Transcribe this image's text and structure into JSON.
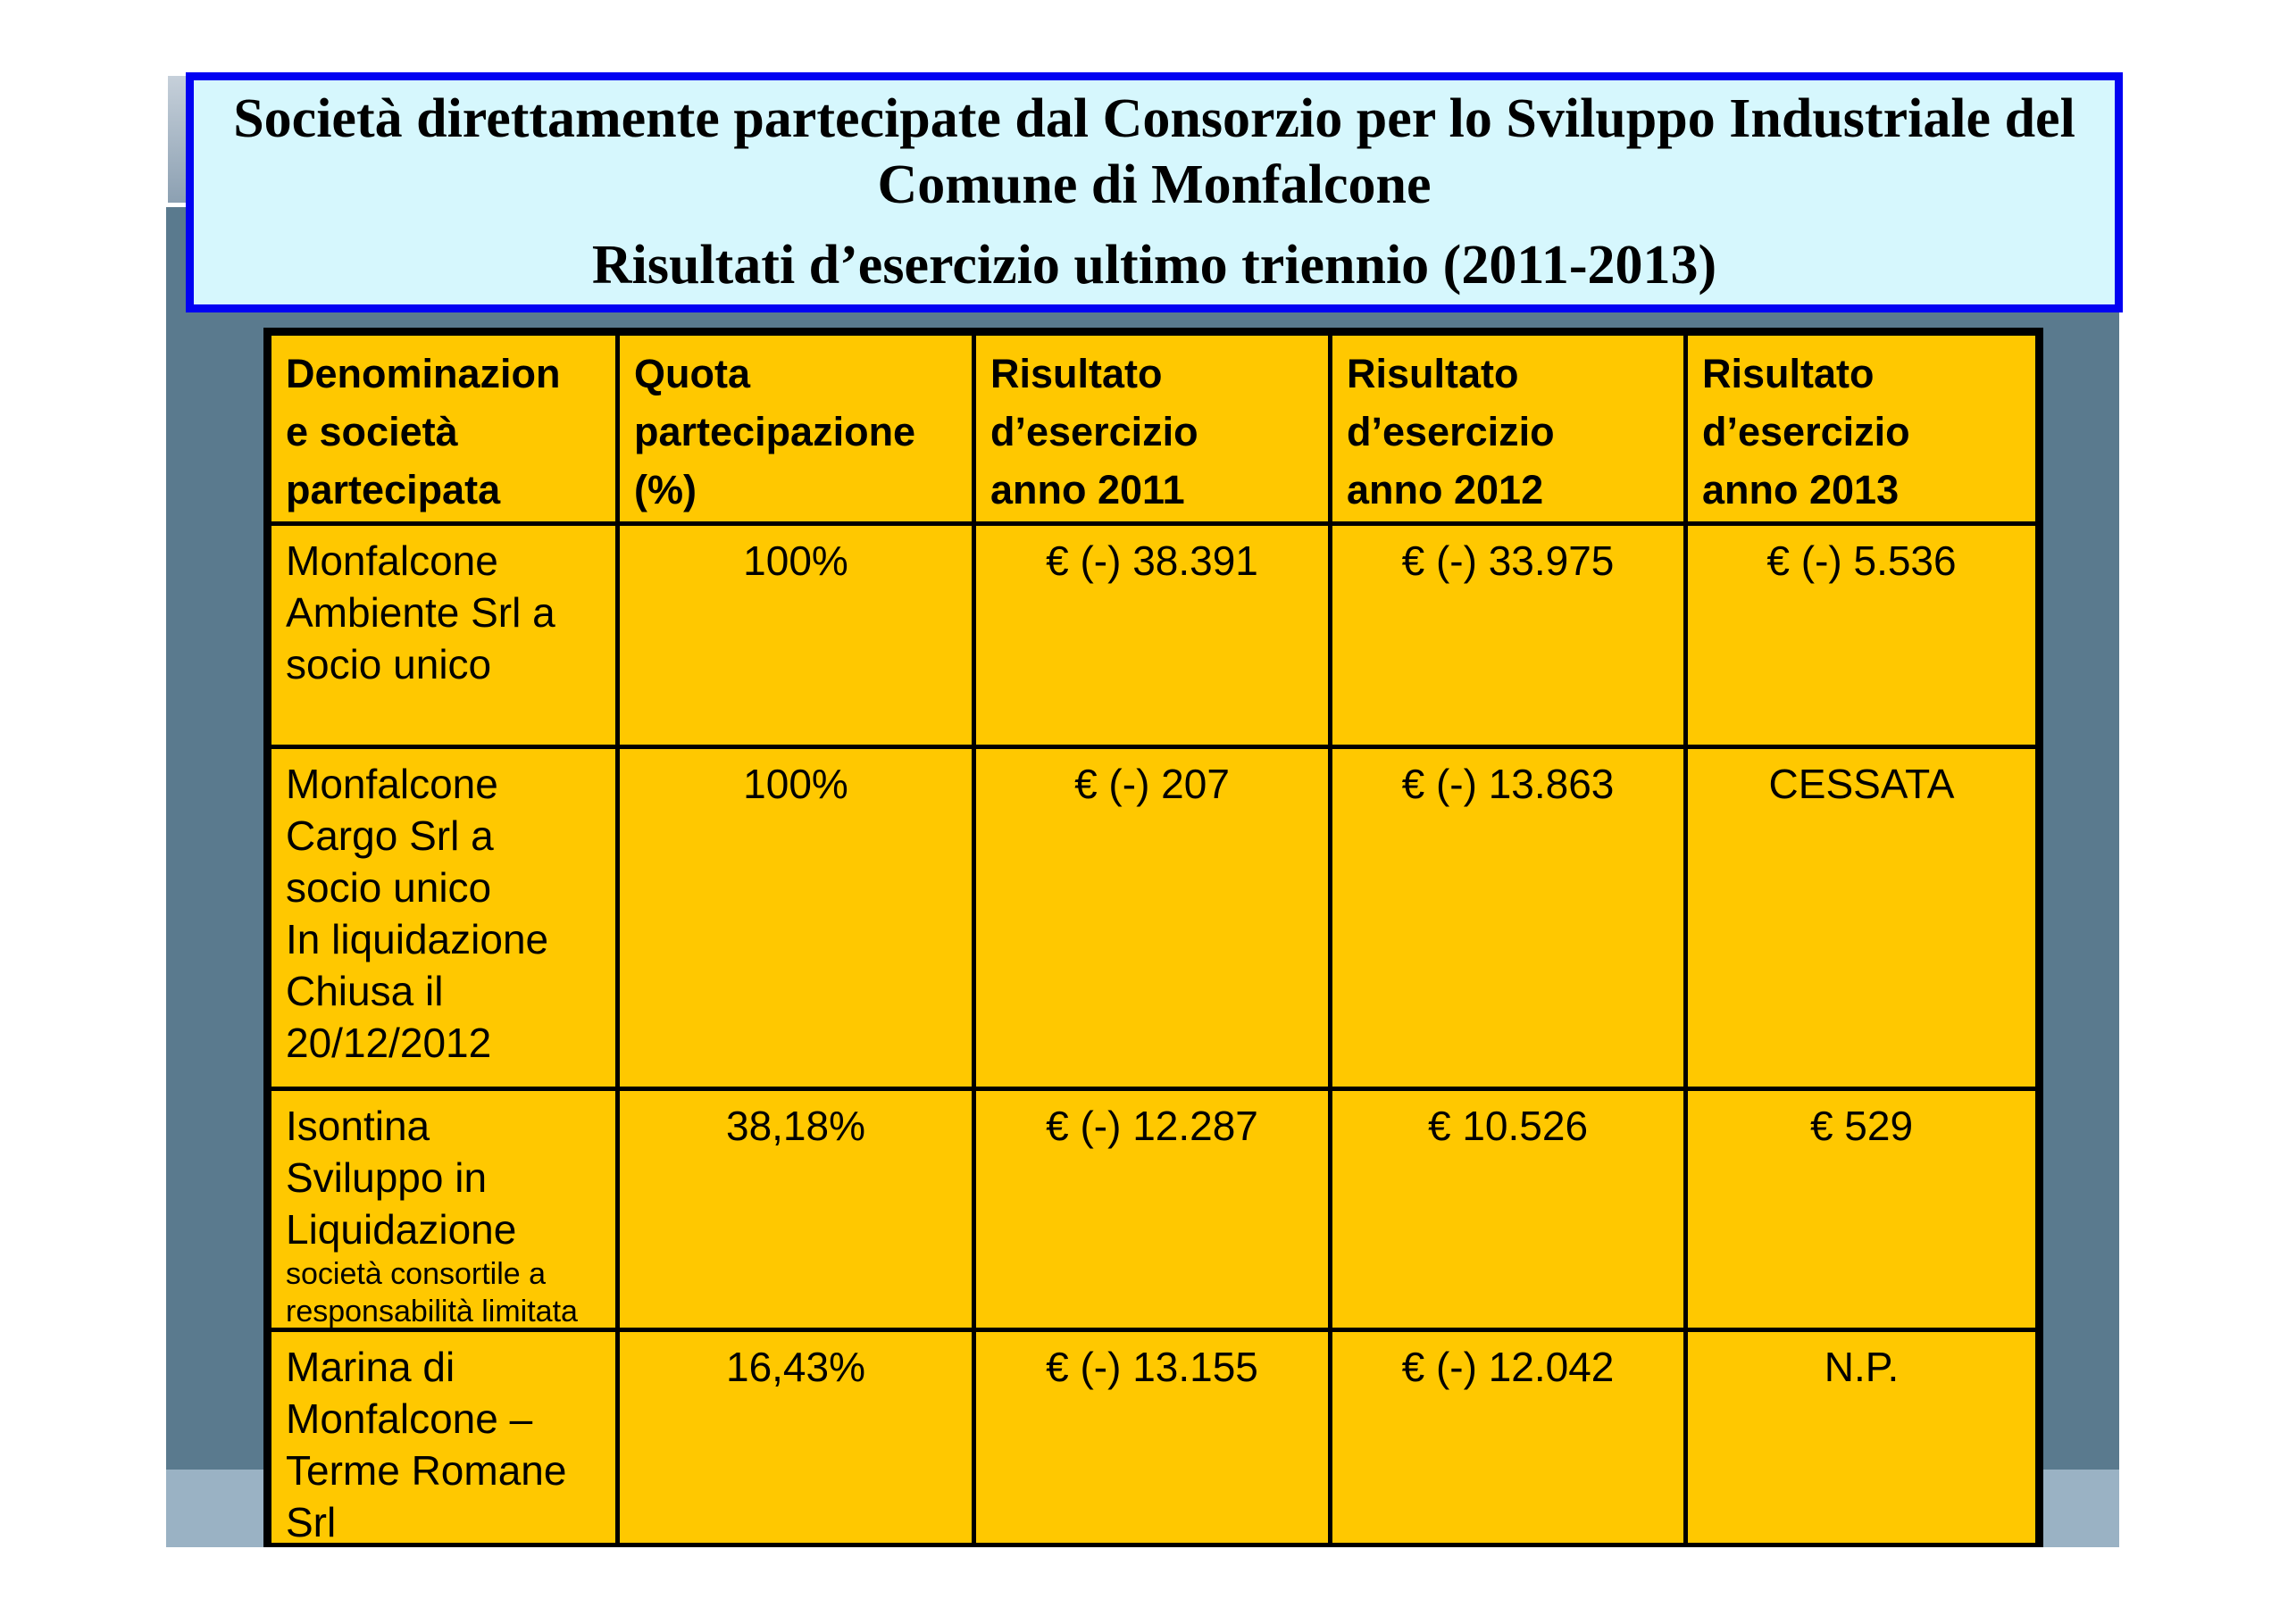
{
  "colors": {
    "slate": "#5A7A8E",
    "footer_band": "#9AB2C4",
    "sliver_top": "#C6D0DA",
    "sliver_bottom": "#8CA0B2",
    "title_fill": "#D6F7FD",
    "title_border": "#0202F2",
    "table_fill": "#FFC800",
    "table_border": "#000000",
    "text": "#000000"
  },
  "title": {
    "heading": "Società direttamente partecipate dal Consorzio per lo Sviluppo Industriale del\nComune di Monfalcone",
    "subtitle": "Risultati d’esercizio ultimo triennio (2011-2013)"
  },
  "table": {
    "headers": [
      "Denominazion\ne società\npartecipata",
      "Quota\npartecipazione\n(%)",
      "Risultato\nd’esercizio\nanno 2011",
      "Risultato\nd’esercizio\nanno 2012",
      "Risultato\nd’esercizio\nanno 2013"
    ],
    "rows": [
      {
        "name": "Monfalcone\nAmbiente Srl a\nsocio unico",
        "note": "",
        "quota": "100%",
        "y2011": "€ (-) 38.391",
        "y2012": "€ (-) 33.975",
        "y2013": "€ (-) 5.536"
      },
      {
        "name": "Monfalcone\nCargo Srl a\nsocio unico\nIn liquidazione\nChiusa il\n20/12/2012",
        "note": "",
        "quota": "100%",
        "y2011": "€ (-) 207",
        "y2012": "€ (-) 13.863",
        "y2013": "CESSATA"
      },
      {
        "name": "Isontina\nSviluppo in\nLiquidazione",
        "note": "società consortile a\nresponsabilità limitata",
        "quota": "38,18%",
        "y2011": "€ (-) 12.287",
        "y2012": "€ 10.526",
        "y2013": "€ 529"
      },
      {
        "name": "Marina di\nMonfalcone –\nTerme Romane\nSrl",
        "note": "",
        "quota": "16,43%",
        "y2011": "€ (-) 13.155",
        "y2012": "€ (-) 12.042",
        "y2013": "N.P."
      }
    ]
  }
}
